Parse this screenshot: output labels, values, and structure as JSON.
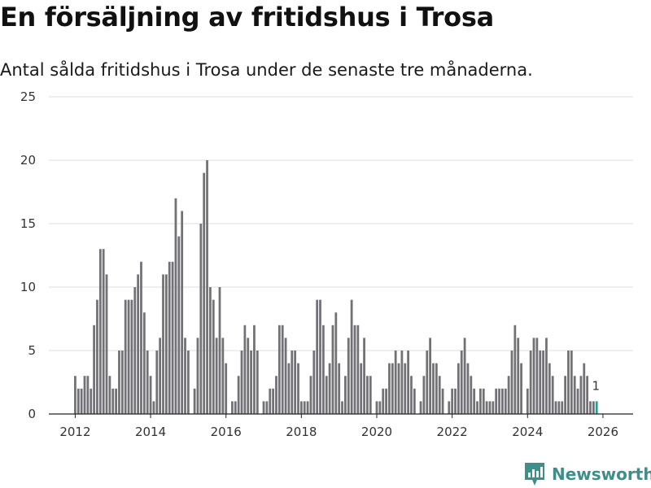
{
  "title": "En försäljning av fritidshus i Trosa",
  "subtitle": "Antal sålda fritidshus i Trosa under de senaste tre månaderna.",
  "brand": {
    "name": "Newsworthy",
    "icon": "newsworthy-logo-icon",
    "color": "#3e8e8a"
  },
  "chart_data": {
    "type": "bar",
    "title": "En försäljning av fritidshus i Trosa",
    "subtitle": "Antal sålda fritidshus i Trosa under de senaste tre månaderna.",
    "xlabel": "",
    "ylabel": "",
    "ylim": [
      0,
      25
    ],
    "yticks": [
      0,
      5,
      10,
      15,
      20,
      25
    ],
    "xlim": [
      2011.3,
      2026.8
    ],
    "xticks": [
      2012,
      2014,
      2016,
      2018,
      2020,
      2022,
      2024,
      2026
    ],
    "grid": true,
    "bar_color": "#727176",
    "highlight_color": "#2a9d8f",
    "start_year": 2012,
    "start_month": 1,
    "step": "month",
    "highlight_last": true,
    "last_value_label": "1",
    "values": [
      3,
      2,
      2,
      3,
      3,
      2,
      7,
      9,
      13,
      13,
      11,
      3,
      2,
      2,
      5,
      5,
      9,
      9,
      9,
      10,
      11,
      12,
      8,
      5,
      3,
      1,
      5,
      6,
      11,
      11,
      12,
      12,
      17,
      14,
      16,
      6,
      5,
      0,
      2,
      6,
      15,
      19,
      20,
      10,
      9,
      6,
      10,
      6,
      4,
      0,
      1,
      1,
      3,
      5,
      7,
      6,
      5,
      7,
      5,
      0,
      1,
      1,
      2,
      2,
      3,
      7,
      7,
      6,
      4,
      5,
      5,
      4,
      1,
      1,
      1,
      3,
      5,
      9,
      9,
      7,
      3,
      4,
      7,
      8,
      4,
      1,
      3,
      6,
      9,
      7,
      7,
      4,
      6,
      3,
      3,
      0,
      1,
      1,
      2,
      2,
      4,
      4,
      5,
      4,
      5,
      4,
      5,
      3,
      2,
      0,
      1,
      3,
      5,
      6,
      4,
      4,
      3,
      2,
      0,
      1,
      2,
      2,
      4,
      5,
      6,
      4,
      3,
      2,
      1,
      2,
      2,
      1,
      1,
      1,
      2,
      2,
      2,
      2,
      3,
      5,
      7,
      6,
      4,
      0,
      2,
      5,
      6,
      6,
      5,
      5,
      6,
      4,
      3,
      1,
      1,
      1,
      3,
      5,
      5,
      3,
      2,
      3,
      4,
      3,
      1,
      1,
      1
    ]
  }
}
